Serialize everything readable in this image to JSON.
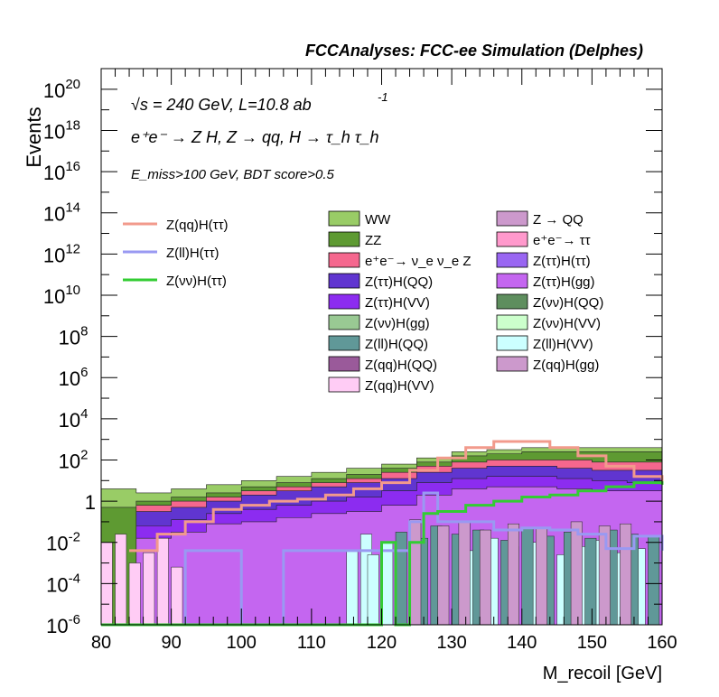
{
  "chart_data": {
    "type": "area",
    "title": "FCCAnalyses: FCC-ee Simulation (Delphes)",
    "annotations": {
      "energy_line": "√s = 240 GeV, L=10.8 ab",
      "energy_superscript": "-1",
      "process_line": "e⁺e⁻ → Z H, Z → qq, H → τ_h τ_h",
      "cut_line": "E_miss>100 GeV, BDT score>0.5"
    },
    "xlabel": "M_recoil [GeV]",
    "ylabel": "Events",
    "xlim": [
      80,
      160
    ],
    "ylim": [
      1e-06,
      1e+21
    ],
    "y_scale": "log",
    "x_ticks": [
      "80",
      "90",
      "100",
      "110",
      "120",
      "130",
      "140",
      "150",
      "160"
    ],
    "y_ticks": [
      {
        "base": "10",
        "exp": "-6"
      },
      {
        "base": "10",
        "exp": "-4"
      },
      {
        "base": "10",
        "exp": "-2"
      },
      {
        "base": "1",
        "exp": ""
      },
      {
        "base": "10",
        "exp": "2"
      },
      {
        "base": "10",
        "exp": "4"
      },
      {
        "base": "10",
        "exp": "6"
      },
      {
        "base": "10",
        "exp": "8"
      },
      {
        "base": "10",
        "exp": "10"
      },
      {
        "base": "10",
        "exp": "12"
      },
      {
        "base": "10",
        "exp": "14"
      },
      {
        "base": "10",
        "exp": "16"
      },
      {
        "base": "10",
        "exp": "18"
      },
      {
        "base": "10",
        "exp": "20"
      }
    ],
    "stack_bands": [
      {
        "name": "Z(ττ)H(gg)",
        "color": "#c466f0",
        "x": [
          80,
          85,
          90,
          95,
          100,
          105,
          110,
          115,
          120,
          125,
          130,
          135,
          140,
          145,
          150,
          155,
          160
        ],
        "log10_top": [
          -6,
          -1.8,
          -1.5,
          -1.1,
          -1.0,
          -0.8,
          -0.6,
          -0.5,
          -0.2,
          0.3,
          0.6,
          0.7,
          0.7,
          0.6,
          0.5,
          0.5,
          0.4
        ]
      },
      {
        "name": "Z(ττ)H(VV)",
        "color": "#8c2cf0",
        "x": [
          80,
          85,
          90,
          95,
          100,
          105,
          110,
          115,
          120,
          125,
          130,
          135,
          140,
          145,
          150,
          155,
          160
        ],
        "log10_top": [
          -6,
          -1.2,
          -0.9,
          -0.6,
          -0.4,
          -0.2,
          0.0,
          0.2,
          0.5,
          0.9,
          1.1,
          1.2,
          1.2,
          1.1,
          1.0,
          0.9,
          0.8
        ]
      },
      {
        "name": "Z(ττ)H(QQ)",
        "color": "#6035d0",
        "x": [
          80,
          85,
          90,
          95,
          100,
          105,
          110,
          115,
          120,
          125,
          130,
          135,
          140,
          145,
          150,
          155,
          160
        ],
        "log10_top": [
          -6,
          -0.5,
          -0.3,
          0.0,
          0.3,
          0.5,
          0.7,
          0.9,
          1.1,
          1.4,
          1.6,
          1.7,
          1.7,
          1.6,
          1.5,
          1.5,
          1.4
        ]
      },
      {
        "name": "e⁺e⁻→ ν_e ν_e Z",
        "color": "#f5678e",
        "x": [
          80,
          85,
          90,
          95,
          100,
          105,
          110,
          115,
          120,
          125,
          130,
          135,
          140,
          145,
          150,
          155,
          160
        ],
        "log10_top": [
          -6,
          -0.2,
          0.0,
          0.2,
          0.5,
          0.7,
          0.9,
          1.1,
          1.4,
          1.7,
          1.9,
          2.0,
          2.0,
          2.0,
          1.9,
          1.9,
          1.8
        ]
      },
      {
        "name": "ZZ",
        "color": "#5e9a32",
        "x": [
          80,
          85,
          90,
          95,
          100,
          105,
          110,
          115,
          120,
          125,
          130,
          135,
          140,
          145,
          150,
          155,
          160
        ],
        "log10_top": [
          -0.3,
          0.0,
          0.2,
          0.4,
          0.7,
          0.9,
          1.1,
          1.3,
          1.6,
          1.9,
          2.2,
          2.3,
          2.4,
          2.4,
          2.4,
          2.4,
          2.4
        ]
      },
      {
        "name": "WW",
        "color": "#99cc66",
        "x": [
          80,
          85,
          90,
          95,
          100,
          105,
          110,
          115,
          120,
          125,
          130,
          135,
          140,
          145,
          150,
          155,
          160
        ],
        "log10_top": [
          0.6,
          0.4,
          0.6,
          0.8,
          1.0,
          1.2,
          1.4,
          1.6,
          1.8,
          2.1,
          2.4,
          2.5,
          2.6,
          2.6,
          2.6,
          2.6,
          2.6
        ]
      }
    ],
    "low_bars": [
      {
        "name": "Z(qq)H(VV)",
        "color": "#ffccf5",
        "x": [
          80,
          82,
          84,
          86,
          88,
          90
        ],
        "log10_top": [
          -2.0,
          -1.6,
          -3.0,
          -2.5,
          -1.8,
          -3.2
        ]
      },
      {
        "name": "Z(ll)H(VV)",
        "color": "#ccffff",
        "x": [
          115,
          117,
          118,
          120,
          132,
          135,
          138,
          141,
          145,
          148,
          150,
          153,
          156
        ],
        "log10_top": [
          -2.4,
          -1.6,
          -2.6,
          -2.0,
          -2.4,
          -1.8,
          -2.2,
          -2.0,
          -2.6,
          -2.2,
          -1.9,
          -2.5,
          -2.3
        ]
      },
      {
        "name": "Z(ll)H(QQ)",
        "color": "#609898",
        "x": [
          122,
          125,
          127,
          130,
          133,
          137,
          140,
          143,
          146,
          149,
          152,
          155,
          158
        ],
        "log10_top": [
          -1.5,
          -1.8,
          -1.2,
          -1.6,
          -1.4,
          -1.9,
          -1.3,
          -1.7,
          -1.5,
          -1.8,
          -1.4,
          -1.6,
          -1.7
        ]
      },
      {
        "name": "Z(qq)H(gg)",
        "color": "#cc99cc",
        "x": [
          124,
          128,
          131,
          134,
          138,
          142,
          147,
          151,
          154
        ],
        "log10_top": [
          -0.9,
          -1.2,
          -1.0,
          -1.4,
          -1.1,
          -1.3,
          -1.0,
          -1.2,
          -1.1
        ]
      }
    ],
    "lines": [
      {
        "name": "Z(qq)H(ττ)",
        "color": "#f29a8c",
        "x": [
          84,
          88,
          92,
          96,
          100,
          104,
          108,
          112,
          116,
          120,
          124,
          128,
          132,
          136,
          140,
          144,
          148,
          152,
          156,
          160
        ],
        "log10_y": [
          -2.4,
          -1.6,
          -1.0,
          -0.4,
          -0.2,
          0.0,
          0.1,
          0.3,
          0.6,
          0.9,
          1.5,
          2.1,
          2.6,
          2.9,
          2.9,
          2.6,
          2.2,
          1.7,
          1.2,
          0.8
        ]
      },
      {
        "name": "Z(ll)H(ττ)",
        "color": "#9999f2",
        "x": [
          80,
          88,
          92,
          100,
          106,
          112,
          118,
          122,
          124,
          126,
          128,
          132,
          136,
          140,
          144,
          148,
          152,
          156,
          160
        ],
        "log10_y": [
          -6,
          -6,
          -2.4,
          -6,
          -2.4,
          -2.4,
          -2.4,
          -2.4,
          -1.0,
          0.4,
          -1.0,
          -1.0,
          -1.4,
          -1.3,
          -1.4,
          -1.6,
          -2.3,
          -1.7,
          -2.4
        ]
      },
      {
        "name": "Z(νν)H(ττ)",
        "color": "#33cc33",
        "x": [
          80,
          118,
          120,
          122,
          124,
          126,
          128,
          132,
          136,
          140,
          144,
          148,
          152,
          156,
          160
        ],
        "log10_y": [
          -6,
          -6,
          -2.0,
          -6,
          -2.0,
          -0.6,
          -0.5,
          -0.2,
          0.0,
          0.2,
          0.3,
          0.5,
          0.7,
          0.9,
          0.8
        ]
      }
    ],
    "legend_lines": [
      "Z(qq)H(ττ)",
      "Z(ll)H(ττ)",
      "Z(νν)H(ττ)"
    ],
    "legend_col1": [
      {
        "label": "WW",
        "color": "#99cc66"
      },
      {
        "label": "ZZ",
        "color": "#5e9a32"
      },
      {
        "label": "e⁺e⁻→ ν_e ν_e Z",
        "color": "#f5678e"
      },
      {
        "label": "Z(ττ)H(QQ)",
        "color": "#6035d0"
      },
      {
        "label": "Z(ττ)H(VV)",
        "color": "#8c2cf0"
      },
      {
        "label": "Z(νν)H(gg)",
        "color": "#99c993"
      },
      {
        "label": "Z(ll)H(QQ)",
        "color": "#609898"
      },
      {
        "label": "Z(qq)H(QQ)",
        "color": "#9a5a9a"
      },
      {
        "label": "Z(qq)H(VV)",
        "color": "#ffccf5"
      }
    ],
    "legend_col2": [
      {
        "label": "Z → QQ",
        "color": "#cc99cc"
      },
      {
        "label": "e⁺e⁻→ ττ",
        "color": "#ff99cc"
      },
      {
        "label": "Z(ττ)H(ττ)",
        "color": "#9966f2"
      },
      {
        "label": "Z(ττ)H(gg)",
        "color": "#c466f0"
      },
      {
        "label": "Z(νν)H(QQ)",
        "color": "#5e8e5e"
      },
      {
        "label": "Z(νν)H(VV)",
        "color": "#ccffcc"
      },
      {
        "label": "Z(ll)H(VV)",
        "color": "#ccffff"
      },
      {
        "label": "Z(qq)H(gg)",
        "color": "#cc99cc"
      }
    ]
  }
}
